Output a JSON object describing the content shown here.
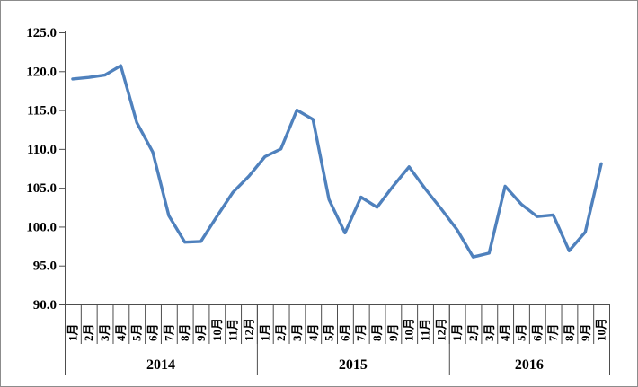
{
  "chart_data": {
    "type": "line",
    "title": "",
    "xlabel": "",
    "ylabel": "",
    "ylim": [
      90,
      125
    ],
    "ytick_step": 5,
    "ytick_decimals": 1,
    "ytick_labels": [
      "90.0",
      "95.0",
      "100.0",
      "105.0",
      "110.0",
      "115.0",
      "120.0",
      "125.0"
    ],
    "grid": false,
    "legend": "none",
    "line_color": "#4F81BD",
    "axis_color": "#4d4d4d",
    "background_color": "#ffffff",
    "series_name": "",
    "groups": [
      {
        "year": "2014",
        "months": [
          "1月",
          "2月",
          "3月",
          "4月",
          "5月",
          "6月",
          "7月",
          "8月",
          "9月",
          "10月",
          "11月",
          "12月"
        ],
        "values": [
          119.0,
          119.2,
          119.5,
          120.7,
          113.4,
          109.6,
          101.4,
          98.0,
          98.1,
          101.3,
          104.4,
          106.5
        ]
      },
      {
        "year": "2015",
        "months": [
          "1月",
          "2月",
          "3月",
          "4月",
          "5月",
          "6月",
          "7月",
          "8月",
          "9月",
          "10月",
          "11月",
          "12月"
        ],
        "values": [
          109.0,
          110.0,
          115.0,
          113.8,
          103.5,
          99.2,
          103.8,
          102.5,
          105.2,
          107.7,
          104.9,
          102.3
        ]
      },
      {
        "year": "2016",
        "months": [
          "1月",
          "2月",
          "3月",
          "4月",
          "5月",
          "6月",
          "7月",
          "8月",
          "9月",
          "10月"
        ],
        "values": [
          99.6,
          96.1,
          96.6,
          105.2,
          102.9,
          101.3,
          101.5,
          96.9,
          99.3,
          108.1
        ]
      }
    ]
  }
}
